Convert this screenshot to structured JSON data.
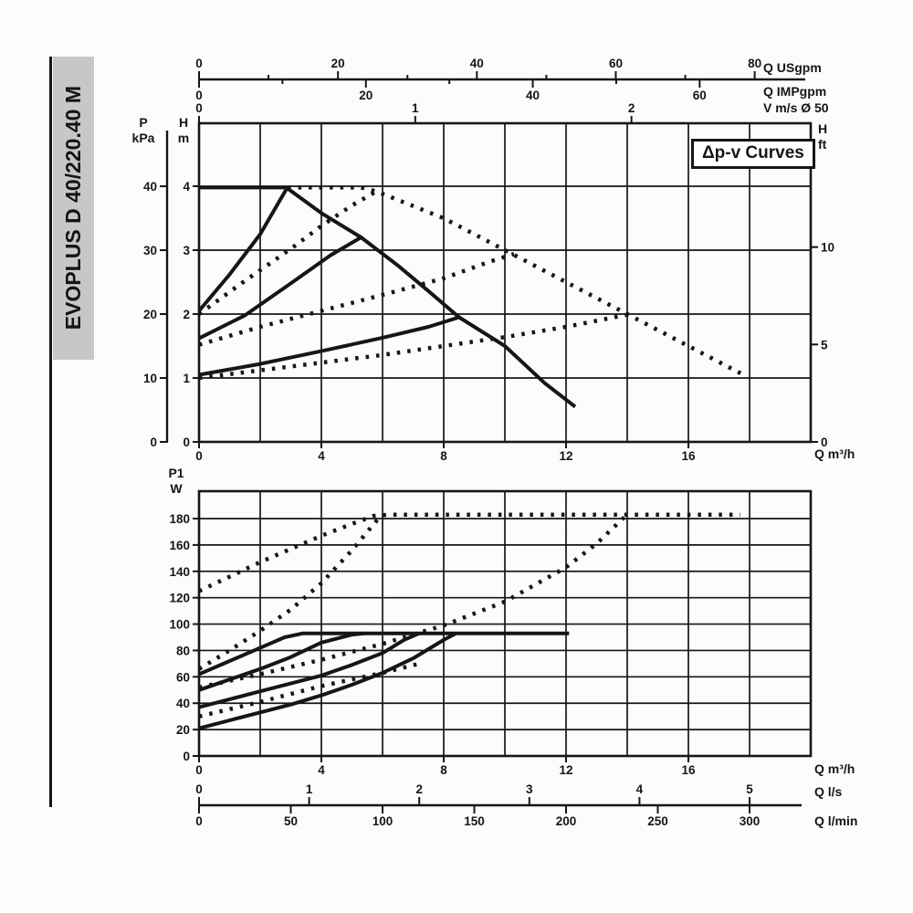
{
  "sidebar": {
    "title": "EVOPLUS D 40/220.40 M"
  },
  "colors": {
    "ink": "#161616",
    "sidebar_bg": "#c7c7c7",
    "paper": "#fcfcfb"
  },
  "labels": {
    "head": {
      "p": "P",
      "p_unit": "kPa",
      "h": "H",
      "h_unit": "m",
      "hft": "H",
      "hft_unit": "ft",
      "x_unit": "Q m³/h",
      "usgpm": "Q USgpm",
      "impgpm": "Q IMPgpm",
      "vms": "V m/s Ø 50",
      "annotation": "Δp-v Curves"
    },
    "power": {
      "p1": "P1",
      "p1_unit": "W",
      "x_unit": "Q m³/h",
      "ls": "Q l/s",
      "lmin": "Q l/min"
    }
  },
  "chart_data": [
    {
      "type": "line",
      "name": "head-flow-curves",
      "title": "Δp-v Curves",
      "xlabel": "Q m³/h",
      "ylabel": "H m",
      "x": {
        "min": 0,
        "max": 20,
        "grid_step": 2,
        "tick_labels": [
          0,
          4,
          8,
          12,
          16
        ]
      },
      "y": {
        "min": 0,
        "max": 4.985,
        "grid_step": 1,
        "tick_labels": [
          0,
          1,
          2,
          3,
          4
        ]
      },
      "y_right": {
        "unit": "H ft",
        "ticks": [
          0,
          5,
          10
        ],
        "m_per_unit": 0.3048
      },
      "y_pressure": {
        "unit": "P kPa",
        "ticks": [
          0,
          10,
          20,
          30,
          40
        ],
        "m_per_unit": 0.1
      },
      "top_scales": [
        {
          "unit": "Q USgpm",
          "m3h_per_unit": 0.2271,
          "major": [
            0,
            20,
            40,
            60,
            80
          ],
          "minor": [
            10,
            30,
            50,
            70
          ]
        },
        {
          "unit": "Q IMPgpm",
          "m3h_per_unit": 0.2728,
          "major": [
            0,
            20,
            40,
            60
          ],
          "minor": [
            10,
            30,
            50
          ]
        },
        {
          "unit": "V m/s Ø 50",
          "m3h_per_unit": 7.069,
          "major": [
            0,
            1,
            2
          ],
          "minor": []
        }
      ],
      "series": [
        {
          "name": "single-pump-max-speed",
          "style": "solid",
          "points": [
            [
              0,
              3.98
            ],
            [
              2.85,
              3.98
            ],
            [
              4,
              3.58
            ],
            [
              5.3,
              3.2
            ],
            [
              6.5,
              2.76
            ],
            [
              7.5,
              2.36
            ],
            [
              8.5,
              1.95
            ],
            [
              10,
              1.5
            ],
            [
              11.3,
              0.92
            ],
            [
              12.3,
              0.55
            ]
          ]
        },
        {
          "name": "single-pump-dpv-high",
          "style": "solid",
          "points": [
            [
              0,
              2.05
            ],
            [
              1,
              2.62
            ],
            [
              2,
              3.25
            ],
            [
              2.85,
              3.95
            ]
          ]
        },
        {
          "name": "single-pump-dpv-mid",
          "style": "solid",
          "points": [
            [
              0,
              1.62
            ],
            [
              1.5,
              1.98
            ],
            [
              3,
              2.48
            ],
            [
              4.3,
              2.92
            ],
            [
              5.3,
              3.2
            ]
          ]
        },
        {
          "name": "single-pump-dpv-min",
          "style": "solid",
          "points": [
            [
              0,
              1.05
            ],
            [
              2,
              1.22
            ],
            [
              4,
              1.42
            ],
            [
              6,
              1.63
            ],
            [
              7.5,
              1.8
            ],
            [
              8.5,
              1.95
            ]
          ]
        },
        {
          "name": "twin-pump-max-speed",
          "style": "dotted",
          "points": [
            [
              2.9,
              3.98
            ],
            [
              5.3,
              3.98
            ],
            [
              5.8,
              3.92
            ],
            [
              8,
              3.5
            ],
            [
              10,
              3.0
            ],
            [
              12,
              2.5
            ],
            [
              14,
              2.0
            ],
            [
              16,
              1.5
            ],
            [
              17.8,
              1.05
            ]
          ]
        },
        {
          "name": "twin-pump-dpv-high",
          "style": "dotted",
          "points": [
            [
              0,
              2.0
            ],
            [
              1.5,
              2.52
            ],
            [
              3,
              3.02
            ],
            [
              4,
              3.38
            ],
            [
              5,
              3.7
            ],
            [
              5.8,
              3.92
            ]
          ]
        },
        {
          "name": "twin-pump-dpv-mid",
          "style": "dotted",
          "points": [
            [
              0,
              1.52
            ],
            [
              2,
              1.8
            ],
            [
              4,
              2.05
            ],
            [
              6,
              2.3
            ],
            [
              8,
              2.56
            ],
            [
              9.5,
              2.82
            ],
            [
              10.3,
              2.94
            ]
          ]
        },
        {
          "name": "twin-pump-dpv-min",
          "style": "dotted",
          "points": [
            [
              0,
              1.0
            ],
            [
              2,
              1.12
            ],
            [
              4,
              1.24
            ],
            [
              6,
              1.36
            ],
            [
              8,
              1.5
            ],
            [
              10,
              1.64
            ],
            [
              12,
              1.8
            ],
            [
              14.1,
              2.0
            ]
          ]
        }
      ]
    },
    {
      "type": "line",
      "name": "power-flow-curves",
      "xlabel": "Q m³/h",
      "ylabel": "P1 W",
      "x": {
        "min": 0,
        "max": 20,
        "grid_step": 2,
        "tick_labels": [
          0,
          4,
          8,
          12,
          16
        ]
      },
      "y": {
        "min": 0,
        "max": 200.7,
        "grid_step": 20,
        "tick_labels": [
          0,
          20,
          40,
          60,
          80,
          100,
          120,
          140,
          160,
          180
        ]
      },
      "bottom_scales": [
        {
          "unit": "Q l/s",
          "m3h_per_unit": 3.6,
          "major": [
            0,
            1,
            2,
            3,
            4,
            5
          ]
        },
        {
          "unit": "Q l/min",
          "m3h_per_unit": 0.06,
          "major": [
            0,
            50,
            100,
            150,
            200,
            250,
            300
          ]
        }
      ],
      "series": [
        {
          "name": "single-pump-max-power",
          "style": "solid",
          "points": [
            [
              0,
              62
            ],
            [
              1,
              72
            ],
            [
              2,
              82
            ],
            [
              2.8,
              90
            ],
            [
              3.4,
              93
            ],
            [
              12.1,
              93
            ]
          ]
        },
        {
          "name": "single-pump-dpv-high-power",
          "style": "solid",
          "points": [
            [
              0,
              50
            ],
            [
              1,
              58
            ],
            [
              2,
              66
            ],
            [
              3,
              75
            ],
            [
              4,
              86
            ],
            [
              5,
              92
            ],
            [
              5.4,
              93
            ]
          ]
        },
        {
          "name": "single-pump-dpv-mid-power",
          "style": "solid",
          "points": [
            [
              0,
              37
            ],
            [
              1,
              43
            ],
            [
              2,
              49
            ],
            [
              3,
              55
            ],
            [
              4,
              61
            ],
            [
              5,
              69
            ],
            [
              6,
              78
            ],
            [
              6.7,
              88
            ],
            [
              7.2,
              93
            ]
          ]
        },
        {
          "name": "single-pump-dpv-min-power",
          "style": "solid",
          "points": [
            [
              0,
              21
            ],
            [
              1,
              27
            ],
            [
              2,
              33
            ],
            [
              3,
              39
            ],
            [
              4,
              46
            ],
            [
              5,
              54
            ],
            [
              6,
              63
            ],
            [
              7,
              74
            ],
            [
              8,
              88
            ],
            [
              8.4,
              93
            ]
          ]
        },
        {
          "name": "twin-pump-max-power",
          "style": "dotted",
          "points": [
            [
              0,
              125
            ],
            [
              1,
              136
            ],
            [
              2,
              147
            ],
            [
              3,
              157
            ],
            [
              4,
              167
            ],
            [
              5,
              176
            ],
            [
              5.7,
              182
            ],
            [
              6.2,
              183
            ],
            [
              17.7,
              183
            ]
          ]
        },
        {
          "name": "twin-pump-dpv-high-power",
          "style": "dotted",
          "points": [
            [
              0,
              66
            ],
            [
              1,
              80
            ],
            [
              2,
              95
            ],
            [
              3,
              111
            ],
            [
              4,
              131
            ],
            [
              5,
              156
            ],
            [
              5.9,
              181
            ]
          ]
        },
        {
          "name": "twin-pump-dpv-mid-power",
          "style": "dotted",
          "points": [
            [
              0,
              52
            ],
            [
              2,
              62
            ],
            [
              4,
              73
            ],
            [
              6,
              85
            ],
            [
              8,
              99
            ],
            [
              10,
              117
            ],
            [
              12,
              143
            ],
            [
              13,
              161
            ],
            [
              13.9,
              181
            ]
          ]
        },
        {
          "name": "twin-pump-dpv-min-power",
          "style": "dotted",
          "points": [
            [
              0,
              30
            ],
            [
              2,
              41
            ],
            [
              4,
              53
            ],
            [
              6,
              63
            ],
            [
              7.2,
              70
            ]
          ]
        }
      ]
    }
  ]
}
